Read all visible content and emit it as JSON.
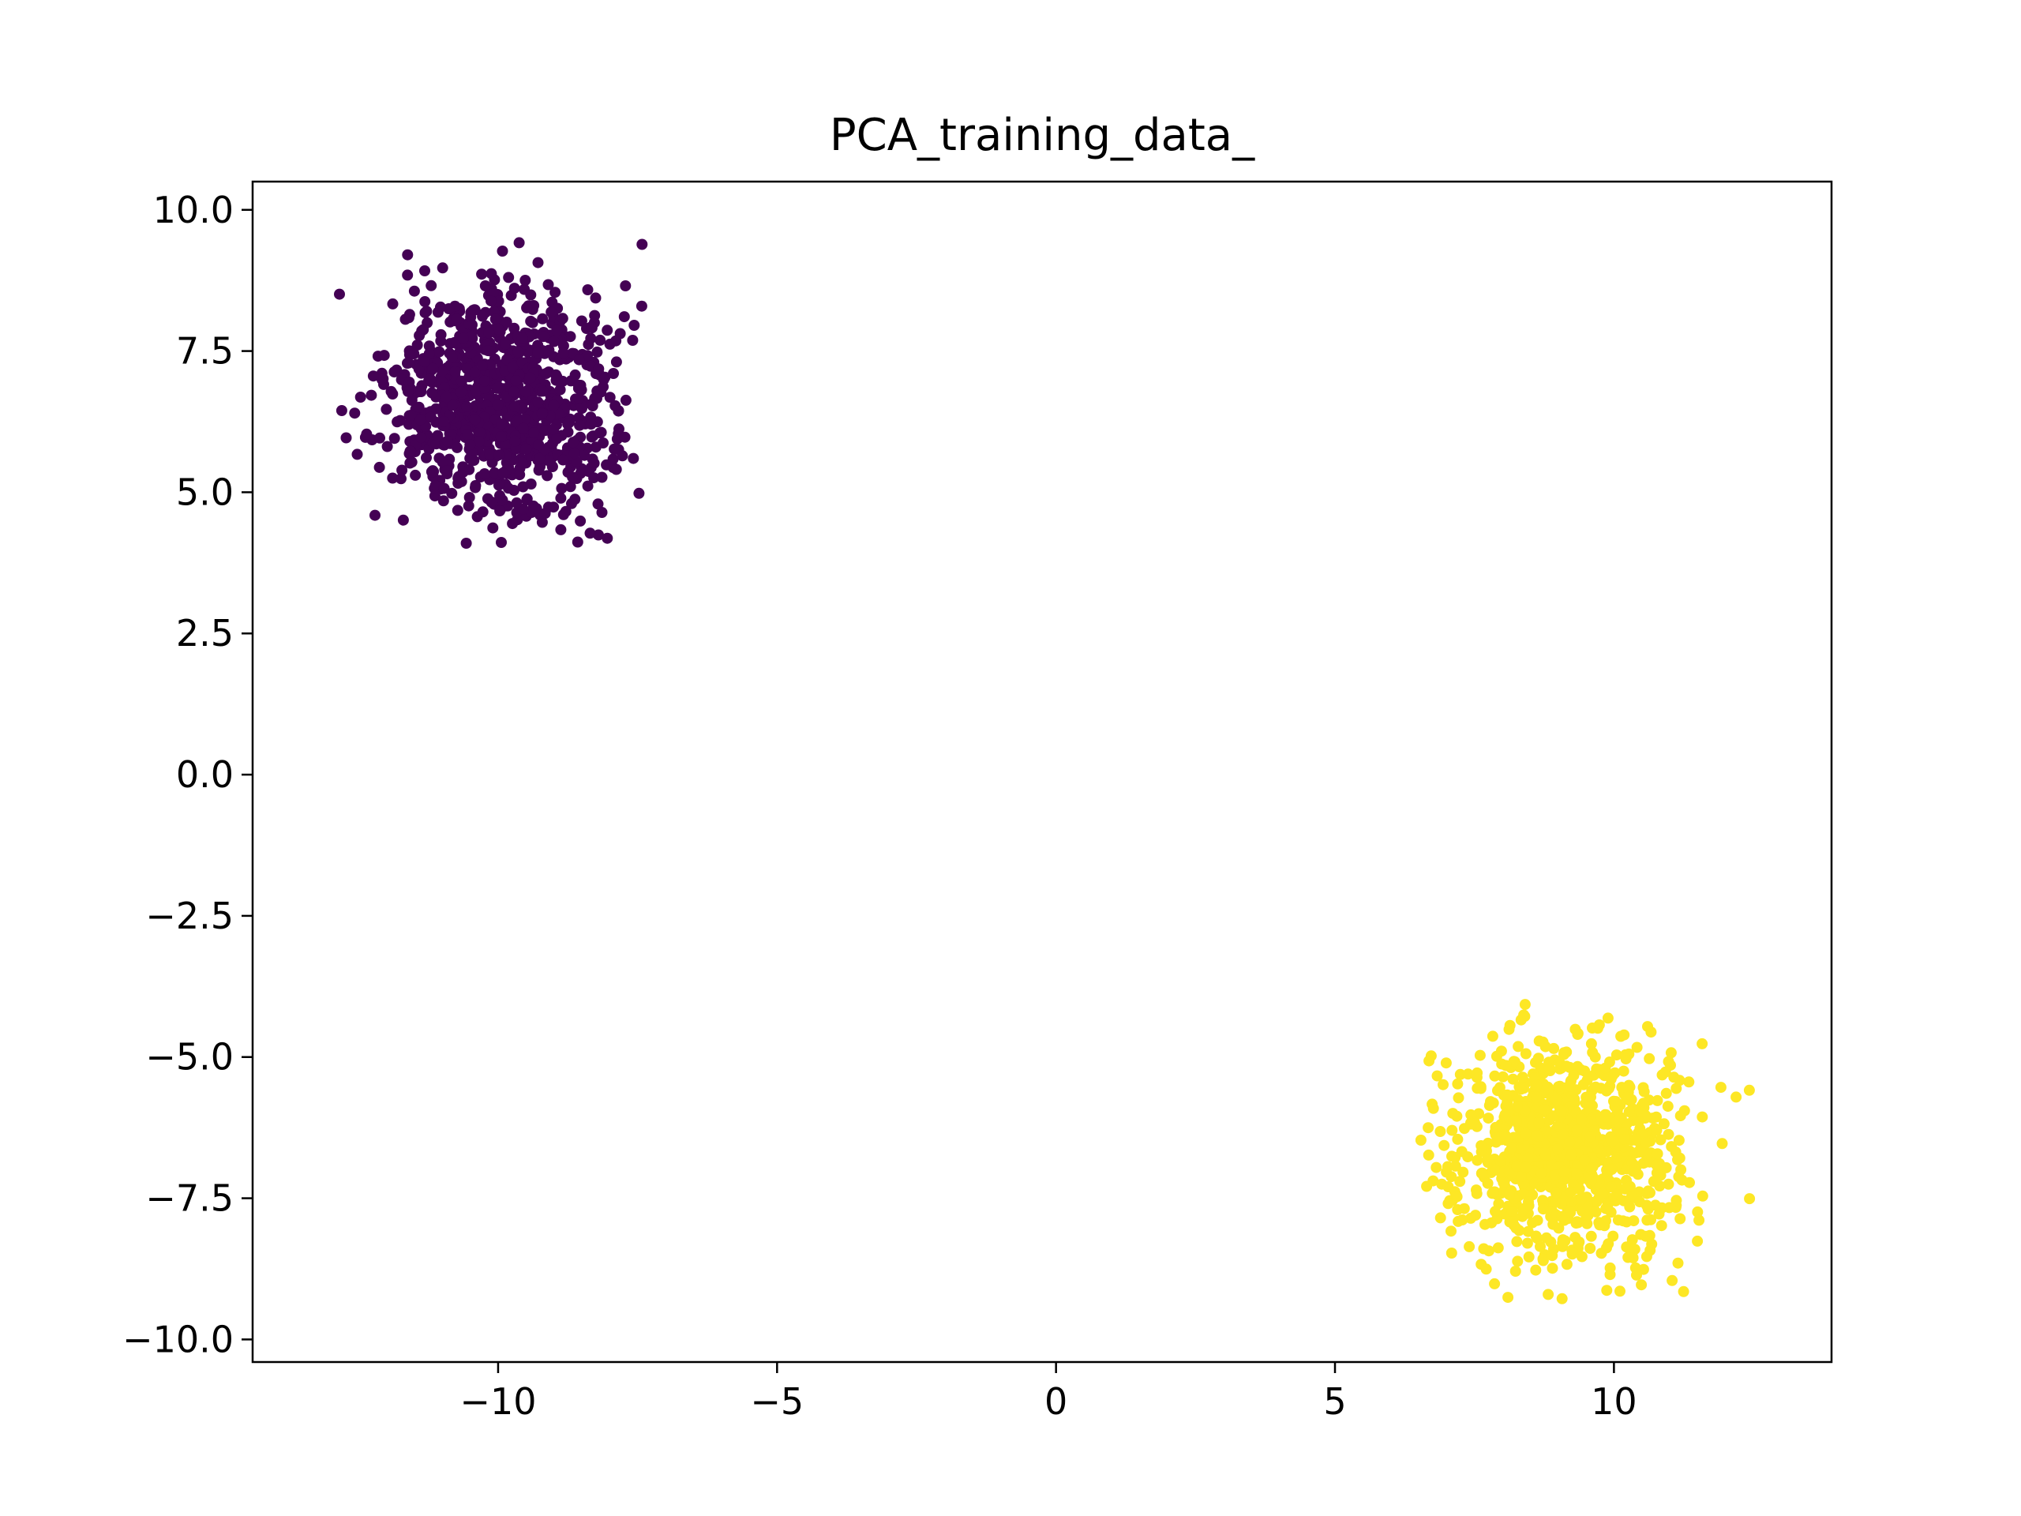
{
  "chart_data": {
    "type": "scatter",
    "title": "PCA_training_data_",
    "xlabel": "",
    "ylabel": "",
    "xlim": [
      -14.4,
      13.9
    ],
    "ylim": [
      -10.4,
      10.5
    ],
    "xticks": [
      -10,
      -5,
      0,
      5,
      10
    ],
    "xtick_labels": [
      "−10",
      "−5",
      "0",
      "5",
      "10"
    ],
    "yticks": [
      10.0,
      7.5,
      5.0,
      2.5,
      0.0,
      -2.5,
      -5.0,
      -7.5,
      -10.0
    ],
    "ytick_labels": [
      "10.0",
      "7.5",
      "5.0",
      "2.5",
      "0.0",
      "−2.5",
      "−5.0",
      "−7.5",
      "−10.0"
    ],
    "grid": false,
    "legend": "none",
    "series": [
      {
        "color": "#440154",
        "cluster": {
          "center": [
            -9.9,
            6.6
          ],
          "x_range": [
            -13.0,
            -7.4
          ],
          "y_range": [
            3.8,
            9.5
          ],
          "count": 1000,
          "spread": 1.0
        }
      },
      {
        "color": "#fde725",
        "cluster": {
          "center": [
            9.1,
            -6.6
          ],
          "x_range": [
            6.5,
            12.5
          ],
          "y_range": [
            -9.3,
            -3.7
          ],
          "count": 1000,
          "spread": 1.0
        }
      }
    ]
  }
}
